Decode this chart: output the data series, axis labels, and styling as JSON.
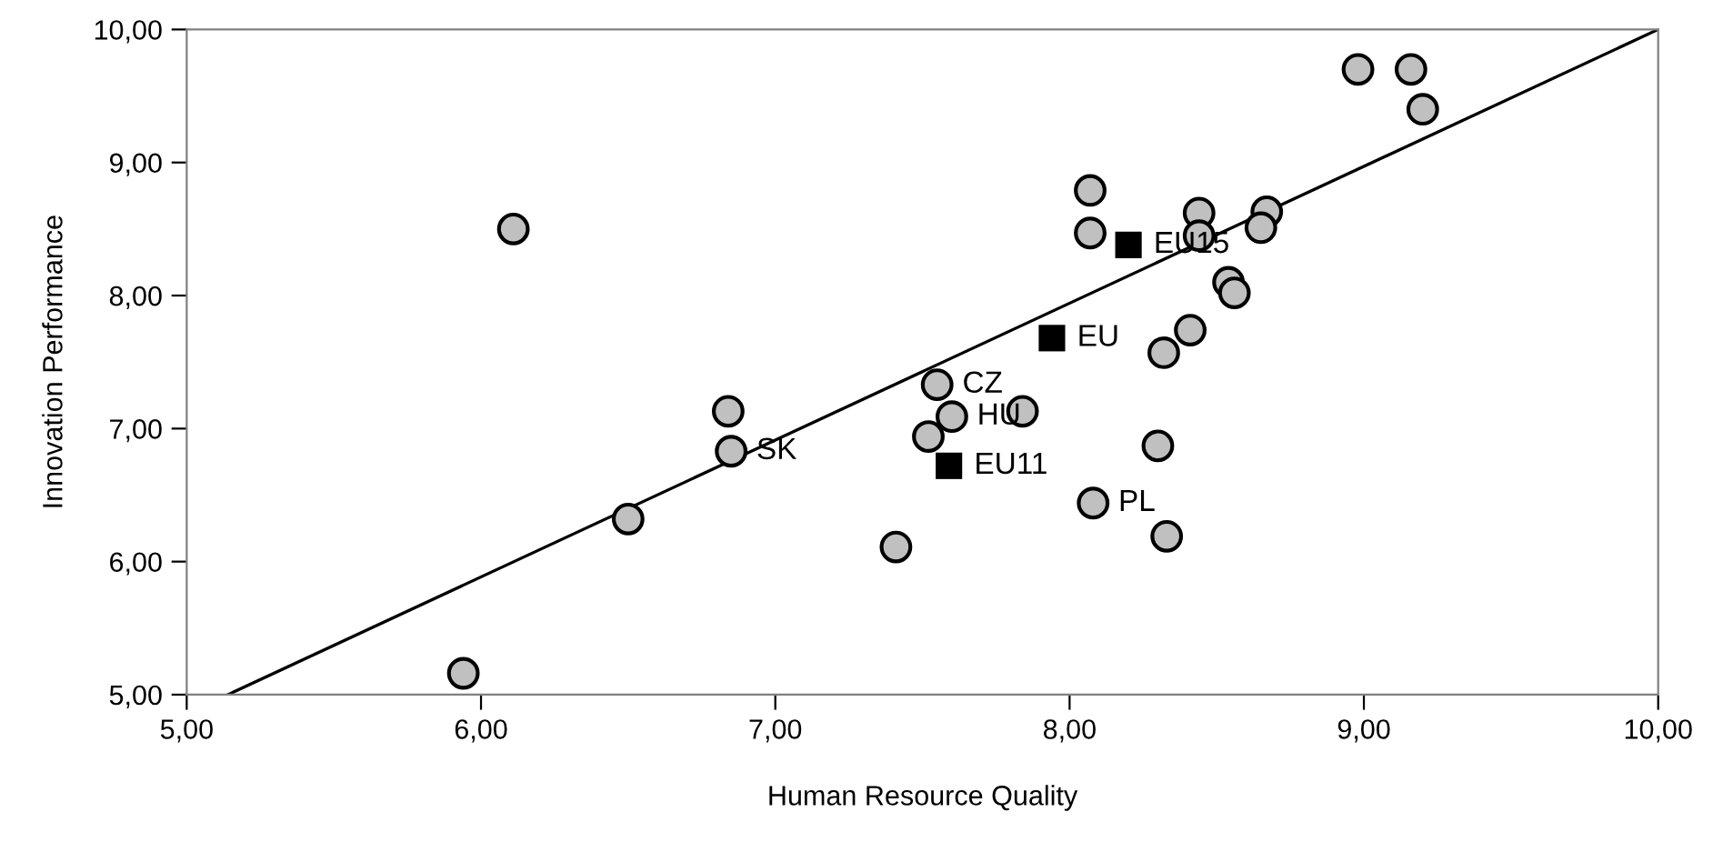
{
  "chart_data": {
    "type": "scatter",
    "xlabel": "Human Resource Quality",
    "ylabel": "Innovation Performance",
    "xlim": [
      5,
      10
    ],
    "ylim": [
      5,
      10
    ],
    "xticks": [
      {
        "value": 5,
        "label": "5,00"
      },
      {
        "value": 6,
        "label": "6,00"
      },
      {
        "value": 7,
        "label": "7,00"
      },
      {
        "value": 8,
        "label": "8,00"
      },
      {
        "value": 9,
        "label": "9,00"
      },
      {
        "value": 10,
        "label": "10,00"
      }
    ],
    "yticks": [
      {
        "value": 5,
        "label": "5,00"
      },
      {
        "value": 6,
        "label": "6,00"
      },
      {
        "value": 7,
        "label": "7,00"
      },
      {
        "value": 8,
        "label": "8,00"
      },
      {
        "value": 9,
        "label": "9,00"
      },
      {
        "value": 10,
        "label": "10,00"
      }
    ],
    "grid": false,
    "series": [
      {
        "type": "line",
        "color": "#000000",
        "marker": "none",
        "line_style": "solid",
        "x": [
          5.14,
          10
        ],
        "values": [
          5,
          10
        ]
      },
      {
        "color": "#c0c0c0",
        "marker": "circle",
        "x": [
          5.94,
          6.11,
          6.5,
          6.84,
          6.85,
          7.41,
          7.52,
          7.55,
          7.6,
          7.84,
          8.07,
          8.07,
          8.08,
          8.3,
          8.33,
          8.32,
          8.41,
          8.44,
          8.44,
          8.54,
          8.56,
          8.67,
          8.65,
          8.98,
          9.16,
          9.2
        ],
        "values": [
          5.16,
          8.5,
          6.32,
          7.13,
          6.83,
          6.11,
          6.94,
          7.33,
          7.09,
          7.13,
          8.79,
          8.47,
          6.44,
          6.87,
          6.19,
          7.57,
          7.74,
          8.62,
          8.45,
          8.1,
          8.02,
          8.63,
          8.51,
          9.7,
          9.7,
          9.4
        ]
      },
      {
        "type": "scatter",
        "color": "#000000",
        "marker": "square",
        "x": [
          8.2,
          7.94,
          7.59
        ],
        "values": [
          8.38,
          7.68,
          6.72
        ]
      }
    ],
    "annotations": [
      {
        "text": "SK",
        "x": 6.85,
        "y": 6.83
      },
      {
        "text": "CZ",
        "x": 7.55,
        "y": 7.33
      },
      {
        "text": "HU",
        "x": 7.6,
        "y": 7.09
      },
      {
        "text": "PL",
        "x": 8.08,
        "y": 6.44
      },
      {
        "text": "EU15",
        "x": 8.2,
        "y": 8.38
      },
      {
        "text": "EU",
        "x": 7.94,
        "y": 7.68
      },
      {
        "text": "EU11",
        "x": 7.59,
        "y": 6.72
      }
    ]
  }
}
